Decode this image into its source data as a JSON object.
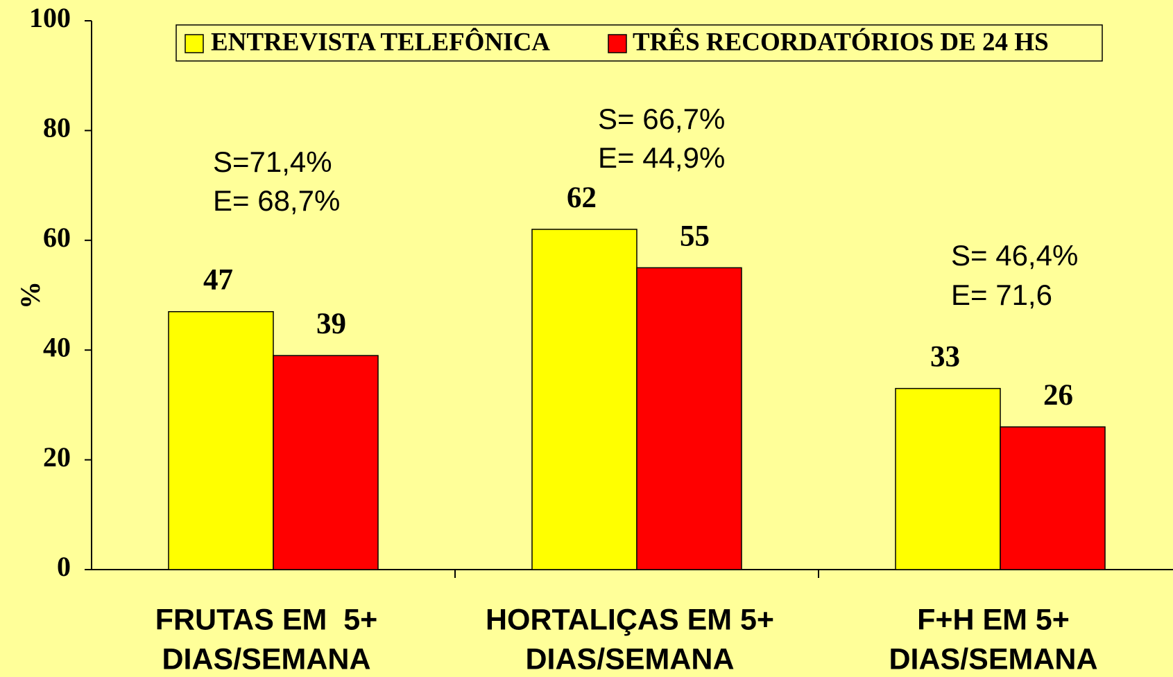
{
  "chart_data": {
    "type": "bar",
    "categories": [
      [
        "FRUTAS EM  5+",
        "DIAS/SEMANA"
      ],
      [
        "HORTALIÇAS EM 5+",
        "DIAS/SEMANA"
      ],
      [
        "F+H EM 5+",
        "DIAS/SEMANA"
      ]
    ],
    "y_label": "%",
    "ylim": [
      0,
      100
    ],
    "yticks": [
      0,
      20,
      40,
      60,
      80,
      100
    ],
    "series": [
      {
        "name": "ENTREVISTA TELEFÔNICA",
        "color": "#ffff00",
        "values": [
          47,
          62,
          33
        ]
      },
      {
        "name": "TRÊS RECORDATÓRIOS DE 24 HS",
        "color": "#ff0000",
        "values": [
          39,
          55,
          26
        ]
      }
    ],
    "annotations": [
      [
        "S=71,4%",
        "E= 68,7%"
      ],
      [
        "S= 66,7%",
        "E= 44,9%"
      ],
      [
        "S= 46,4%",
        "E= 71,6"
      ]
    ],
    "background": "#ffff99",
    "legend": "top"
  }
}
